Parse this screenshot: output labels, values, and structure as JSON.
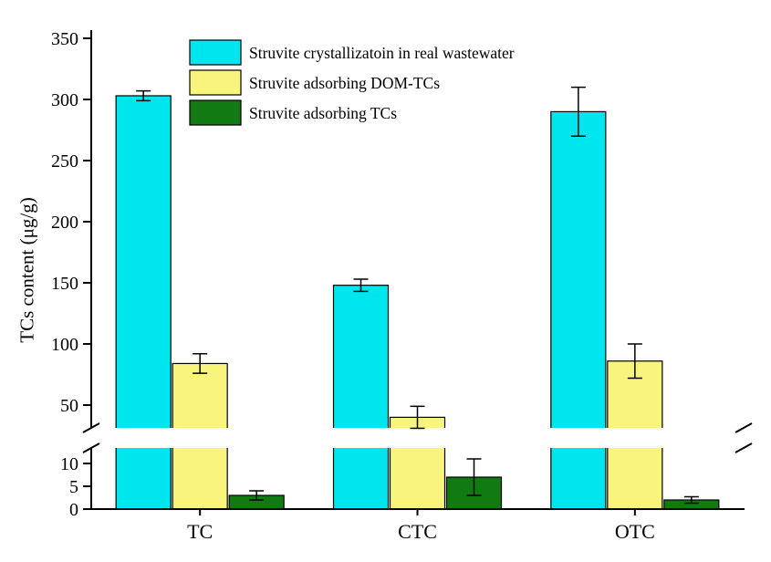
{
  "chart_data": {
    "type": "bar",
    "title": "",
    "categories": [
      "TC",
      "CTC",
      "OTC"
    ],
    "series": [
      {
        "name": "Struvite crystallizatoin in real wastewater",
        "color": "#00e6ee",
        "values": [
          303,
          148,
          290
        ],
        "errors": [
          4,
          5,
          20
        ]
      },
      {
        "name": "Struvite adsorbing DOM-TCs",
        "color": "#f8f47c",
        "values": [
          84,
          40,
          86
        ],
        "errors": [
          8,
          9,
          14
        ]
      },
      {
        "name": "Struvite adsorbing TCs",
        "color": "#127a12",
        "values": [
          3,
          7,
          2
        ],
        "errors": [
          1,
          4,
          0.7
        ]
      }
    ],
    "xlabel": "",
    "ylabel": "TCs content (μg/g)",
    "y_axis": {
      "broken": true,
      "lower_ticks": [
        0,
        5,
        10
      ],
      "upper_ticks": [
        50,
        100,
        150,
        200,
        250,
        300,
        350
      ],
      "lower_range": [
        0,
        13
      ],
      "upper_range": [
        30,
        355
      ]
    },
    "legend_position": "top-left-inside",
    "grid": false,
    "error_bars": true,
    "bar_outline_color": "#000000",
    "axis_color": "#000000",
    "background_color": "#ffffff"
  }
}
